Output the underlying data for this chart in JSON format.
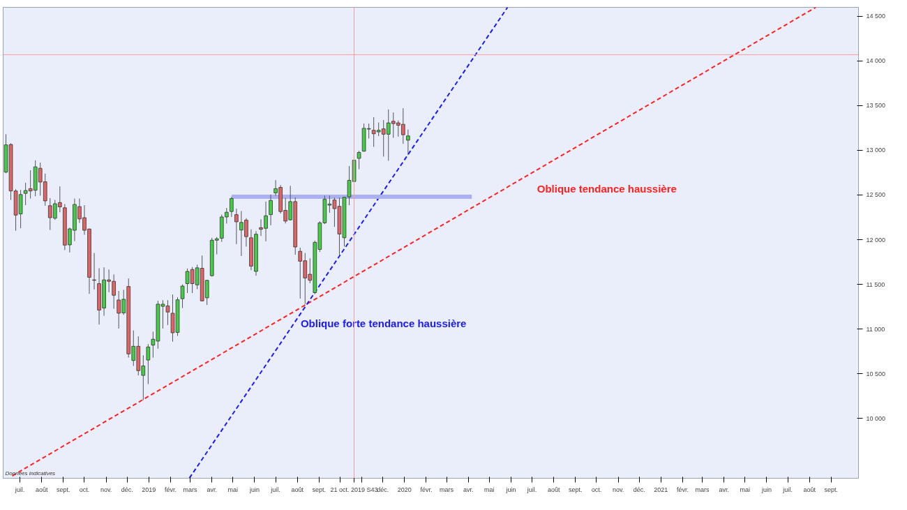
{
  "chart_data": {
    "type": "candlestick",
    "x": [
      "2018-06-11",
      "2018-06-18",
      "2018-06-25",
      "2018-07-02",
      "2018-07-09",
      "2018-07-16",
      "2018-07-23",
      "2018-07-30",
      "2018-08-06",
      "2018-08-13",
      "2018-08-20",
      "2018-08-27",
      "2018-09-03",
      "2018-09-10",
      "2018-09-17",
      "2018-09-24",
      "2018-10-01",
      "2018-10-08",
      "2018-10-15",
      "2018-10-22",
      "2018-10-29",
      "2018-11-05",
      "2018-11-12",
      "2018-11-19",
      "2018-11-26",
      "2018-12-03",
      "2018-12-10",
      "2018-12-17",
      "2018-12-24",
      "2018-12-31",
      "2019-01-07",
      "2019-01-14",
      "2019-01-21",
      "2019-01-28",
      "2019-02-04",
      "2019-02-11",
      "2019-02-18",
      "2019-02-25",
      "2019-03-04",
      "2019-03-11",
      "2019-03-18",
      "2019-03-25",
      "2019-04-01",
      "2019-04-08",
      "2019-04-15",
      "2019-04-22",
      "2019-04-29",
      "2019-05-06",
      "2019-05-13",
      "2019-05-20",
      "2019-05-27",
      "2019-06-03",
      "2019-06-10",
      "2019-06-17",
      "2019-06-24",
      "2019-07-01",
      "2019-07-08",
      "2019-07-15",
      "2019-07-22",
      "2019-07-29",
      "2019-08-05",
      "2019-08-12",
      "2019-08-19",
      "2019-08-26",
      "2019-09-02",
      "2019-09-09",
      "2019-09-16",
      "2019-09-23",
      "2019-09-30",
      "2019-10-07",
      "2019-10-14",
      "2019-10-21",
      "2019-10-28",
      "2019-11-04",
      "2019-11-11",
      "2019-11-18",
      "2019-11-25",
      "2019-12-02",
      "2019-12-09",
      "2019-12-16",
      "2019-12-23",
      "2019-12-30",
      "2020-01-06"
    ],
    "ohlc": [
      [
        12756,
        13180,
        12743,
        13061
      ],
      [
        13065,
        13079,
        12444,
        12545
      ],
      [
        12545,
        12565,
        12100,
        12275
      ],
      [
        12288,
        12557,
        12127,
        12505
      ],
      [
        12518,
        12637,
        12386,
        12550
      ],
      [
        12571,
        12777,
        12460,
        12545
      ],
      [
        12553,
        12888,
        12486,
        12815
      ],
      [
        12799,
        12862,
        12492,
        12645
      ],
      [
        12648,
        12740,
        12380,
        12434
      ],
      [
        12380,
        12465,
        12108,
        12246
      ],
      [
        12240,
        12444,
        12222,
        12402
      ],
      [
        12415,
        12597,
        12307,
        12367
      ],
      [
        12357,
        12399,
        11883,
        11939
      ],
      [
        11942,
        12134,
        11857,
        12121
      ],
      [
        12105,
        12460,
        11984,
        12394
      ],
      [
        12370,
        12460,
        12188,
        12232
      ],
      [
        12246,
        12386,
        12055,
        12105
      ],
      [
        12119,
        12125,
        11394,
        11579
      ],
      [
        11550,
        11851,
        11442,
        11545
      ],
      [
        11508,
        11680,
        11050,
        11212
      ],
      [
        11235,
        11690,
        11148,
        11550
      ],
      [
        11550,
        11666,
        11412,
        11534
      ],
      [
        11534,
        11611,
        11227,
        11378
      ],
      [
        11325,
        11426,
        11005,
        11177
      ],
      [
        11180,
        11439,
        11159,
        11333
      ],
      [
        11476,
        11566,
        10680,
        10722
      ],
      [
        10648,
        10984,
        10587,
        10807
      ],
      [
        10807,
        10918,
        10481,
        10534
      ],
      [
        10481,
        10706,
        10204,
        10587
      ],
      [
        10653,
        10831,
        10383,
        10799
      ],
      [
        10820,
        10970,
        10680,
        10886
      ],
      [
        10865,
        11315,
        10780,
        11278
      ],
      [
        11254,
        11323,
        11005,
        11278
      ],
      [
        11259,
        11323,
        11045,
        11190
      ],
      [
        11177,
        11386,
        10859,
        10958
      ],
      [
        10962,
        11355,
        10923,
        11327
      ],
      [
        11339,
        11500,
        11235,
        11481
      ],
      [
        11508,
        11677,
        11402,
        11645
      ],
      [
        11666,
        11693,
        11402,
        11508
      ],
      [
        11494,
        11720,
        11446,
        11685
      ],
      [
        11680,
        11823,
        11309,
        11315
      ],
      [
        11349,
        11550,
        11269,
        11545
      ],
      [
        11597,
        12021,
        11587,
        11994
      ],
      [
        11994,
        12029,
        11835,
        12010
      ],
      [
        12016,
        12280,
        11976,
        12254
      ],
      [
        12254,
        12355,
        12180,
        12307
      ],
      [
        12315,
        12478,
        12254,
        12460
      ],
      [
        12280,
        12347,
        11950,
        12200
      ],
      [
        12108,
        12320,
        11817,
        12193
      ],
      [
        12219,
        12240,
        11923,
        12034
      ],
      [
        12021,
        12116,
        11658,
        11704
      ],
      [
        11645,
        12095,
        11597,
        12061
      ],
      [
        12134,
        12228,
        12042,
        12116
      ],
      [
        12127,
        12426,
        11982,
        12267
      ],
      [
        12280,
        12505,
        12161,
        12439
      ],
      [
        12523,
        12666,
        12492,
        12571
      ],
      [
        12585,
        12611,
        12293,
        12315
      ],
      [
        12328,
        12466,
        12182,
        12208
      ],
      [
        12222,
        12603,
        12215,
        12426
      ],
      [
        12426,
        12470,
        11831,
        11918
      ],
      [
        11870,
        11910,
        11341,
        11759
      ],
      [
        11764,
        11851,
        11280,
        11571
      ],
      [
        11613,
        11791,
        11513,
        11545
      ],
      [
        11407,
        11989,
        11390,
        11970
      ],
      [
        11891,
        12206,
        11862,
        12188
      ],
      [
        12188,
        12492,
        12174,
        12452
      ],
      [
        12386,
        12492,
        12301,
        12399
      ],
      [
        12444,
        12470,
        12143,
        12347
      ],
      [
        12373,
        12470,
        11831,
        12063
      ],
      [
        12021,
        12480,
        11923,
        12474
      ],
      [
        12478,
        12823,
        12386,
        12664
      ],
      [
        12651,
        12902,
        12645,
        12889
      ],
      [
        12910,
        12994,
        12788,
        12976
      ],
      [
        12990,
        13299,
        12985,
        13246
      ],
      [
        13237,
        13299,
        13132,
        13243
      ],
      [
        13224,
        13370,
        13039,
        13185
      ],
      [
        13206,
        13312,
        13159,
        13224
      ],
      [
        13240,
        13339,
        12929,
        13180
      ],
      [
        13180,
        13458,
        12883,
        13307
      ],
      [
        13325,
        13423,
        13140,
        13299
      ],
      [
        13307,
        13333,
        13153,
        13280
      ],
      [
        13291,
        13471,
        13074,
        13174
      ],
      [
        13113,
        13233,
        12947,
        13161
      ]
    ],
    "series": [
      {
        "type": "line",
        "name": "Oblique tendance haussière",
        "color": "#ff2020",
        "line_style": "dashed",
        "x": [
          "2018-06-20",
          "2021-08-10"
        ],
        "values": [
          9357,
          14600
        ]
      },
      {
        "type": "line",
        "name": "Oblique forte tendance haussière",
        "color": "#1a1aff",
        "line_style": "dashed",
        "x": [
          "2019-02-28",
          "2020-05-27"
        ],
        "values": [
          9333,
          14600
        ]
      },
      {
        "type": "line",
        "color": "#aab0f0",
        "line_style": "solid",
        "x": [
          "2019-04-29",
          "2020-04-06"
        ],
        "values": [
          12480,
          12480
        ]
      }
    ],
    "annotations": [
      "Données indicatives"
    ],
    "ref_lines": [
      {
        "axis": "x",
        "value": "2019-10-21",
        "label": "21 oct. 2019 S43",
        "color": "#ff9999"
      },
      {
        "axis": "y",
        "value": 14070,
        "label": null,
        "color": "#ff9999"
      }
    ],
    "xlim": [
      "2018-06-07",
      "2021-10-10"
    ],
    "xticks": [
      {
        "value": "2018-07-01",
        "label": "juil."
      },
      {
        "value": "2018-08-01",
        "label": "août"
      },
      {
        "value": "2018-09-01",
        "label": "sept."
      },
      {
        "value": "2018-10-01",
        "label": "oct."
      },
      {
        "value": "2018-11-01",
        "label": "nov."
      },
      {
        "value": "2018-12-01",
        "label": "déc."
      },
      {
        "value": "2019-01-01",
        "label": "2019"
      },
      {
        "value": "2019-02-01",
        "label": "févr."
      },
      {
        "value": "2019-03-01",
        "label": "mars"
      },
      {
        "value": "2019-04-01",
        "label": "avr."
      },
      {
        "value": "2019-05-01",
        "label": "mai"
      },
      {
        "value": "2019-06-01",
        "label": "juin"
      },
      {
        "value": "2019-07-01",
        "label": "juil."
      },
      {
        "value": "2019-08-01",
        "label": "août"
      },
      {
        "value": "2019-09-01",
        "label": "sept."
      },
      {
        "value": "2019-10-01",
        "label": null
      },
      {
        "value": "2019-11-01",
        "label": null
      },
      {
        "value": "2019-12-01",
        "label": "déc."
      },
      {
        "value": "2020-01-01",
        "label": "2020"
      },
      {
        "value": "2020-02-01",
        "label": "févr."
      },
      {
        "value": "2020-03-01",
        "label": "mars"
      },
      {
        "value": "2020-04-01",
        "label": "avr."
      },
      {
        "value": "2020-05-01",
        "label": "mai"
      },
      {
        "value": "2020-06-01",
        "label": "juin"
      },
      {
        "value": "2020-07-01",
        "label": "juil."
      },
      {
        "value": "2020-08-01",
        "label": "août"
      },
      {
        "value": "2020-09-01",
        "label": "sept."
      },
      {
        "value": "2020-10-01",
        "label": "oct."
      },
      {
        "value": "2020-11-01",
        "label": "nov."
      },
      {
        "value": "2020-12-01",
        "label": "déc."
      },
      {
        "value": "2021-01-01",
        "label": "2021"
      },
      {
        "value": "2021-02-01",
        "label": "févr."
      },
      {
        "value": "2021-03-01",
        "label": "mars"
      },
      {
        "value": "2021-04-01",
        "label": "avr."
      },
      {
        "value": "2021-05-01",
        "label": "mai"
      },
      {
        "value": "2021-06-01",
        "label": "juin"
      },
      {
        "value": "2021-07-01",
        "label": "juil."
      },
      {
        "value": "2021-08-01",
        "label": "août"
      },
      {
        "value": "2021-09-01",
        "label": "sept."
      }
    ],
    "ylim": [
      9330,
      14600
    ],
    "yticks": [
      {
        "value": 10000,
        "label": "10 000"
      },
      {
        "value": 10500,
        "label": "10 500"
      },
      {
        "value": 11000,
        "label": "11 000"
      },
      {
        "value": 11500,
        "label": "11 500"
      },
      {
        "value": 12000,
        "label": "12 000"
      },
      {
        "value": 12500,
        "label": "12 500"
      },
      {
        "value": 13000,
        "label": "13 000"
      },
      {
        "value": 13500,
        "label": "13 500"
      },
      {
        "value": 14000,
        "label": "14 000"
      },
      {
        "value": 14500,
        "label": "14 500"
      }
    ],
    "grid": false
  }
}
